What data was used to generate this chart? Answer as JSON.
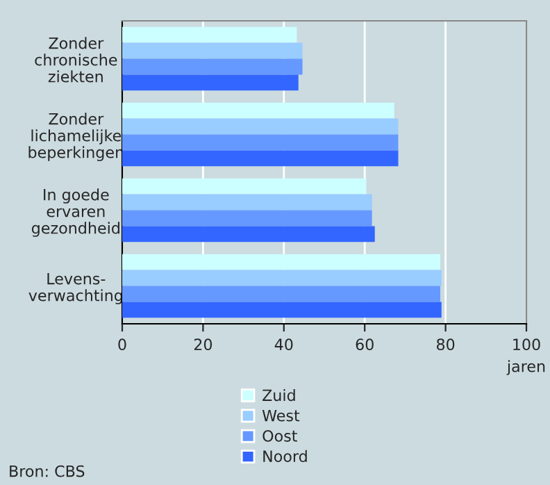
{
  "chart_data": {
    "type": "bar",
    "orientation": "horizontal",
    "categories": [
      "Zonder\nchronische\nziekten",
      "Zonder\nlichamelijke\nbeperkingen",
      "In goede\nervaren\ngezondheid",
      "Levens-\nverwachting"
    ],
    "series": [
      {
        "name": "Zuid",
        "color": "#ccffff",
        "values": [
          43.2,
          67.3,
          60.4,
          78.7
        ]
      },
      {
        "name": "West",
        "color": "#99ccff",
        "values": [
          44.6,
          68.3,
          61.8,
          79.0
        ]
      },
      {
        "name": "Oost",
        "color": "#6699ff",
        "values": [
          44.6,
          68.3,
          61.8,
          78.7
        ]
      },
      {
        "name": "Noord",
        "color": "#3366ff",
        "values": [
          43.6,
          68.3,
          62.5,
          79.0
        ]
      }
    ],
    "xlim": [
      0,
      100
    ],
    "xticks": [
      0,
      20,
      40,
      60,
      80,
      100
    ],
    "xlabel": "jaren",
    "grid": "x",
    "legend": "bottom",
    "annotations": [
      "Bron: CBS"
    ]
  }
}
